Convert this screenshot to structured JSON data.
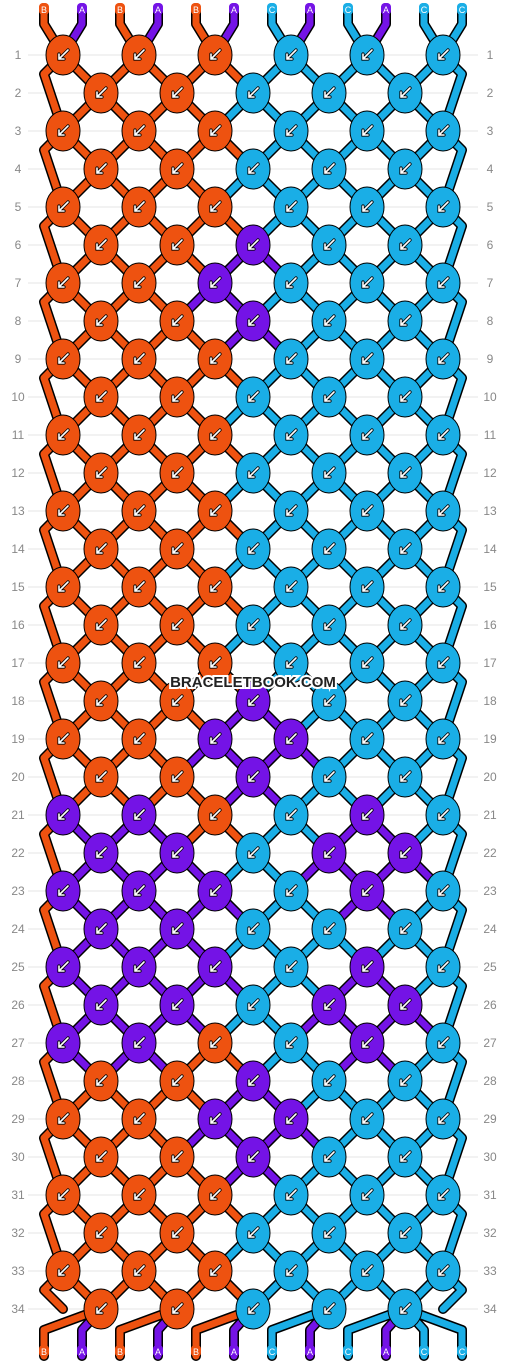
{
  "watermark": "BRACELETBOOK.COM",
  "colors": {
    "A": "#7413E6",
    "B": "#EE5210",
    "C": "#1AAEE6"
  },
  "top_strands": [
    "B",
    "A",
    "B",
    "A",
    "B",
    "A",
    "C",
    "A",
    "C",
    "A",
    "C",
    "C"
  ],
  "bottom_strands": [
    "B",
    "A",
    "B",
    "A",
    "B",
    "A",
    "C",
    "A",
    "C",
    "A",
    "C",
    "C"
  ],
  "rows": [
    {
      "num": "1",
      "knots": [
        "B",
        "B",
        "B",
        "C",
        "C",
        "C"
      ]
    },
    {
      "num": "2",
      "knots": [
        "B",
        "B",
        "C",
        "C",
        "C"
      ]
    },
    {
      "num": "3",
      "knots": [
        "B",
        "B",
        "B",
        "C",
        "C",
        "C"
      ]
    },
    {
      "num": "4",
      "knots": [
        "B",
        "B",
        "C",
        "C",
        "C"
      ]
    },
    {
      "num": "5",
      "knots": [
        "B",
        "B",
        "B",
        "C",
        "C",
        "C"
      ]
    },
    {
      "num": "6",
      "knots": [
        "B",
        "B",
        "A",
        "C",
        "C"
      ]
    },
    {
      "num": "7",
      "knots": [
        "B",
        "B",
        "A",
        "C",
        "C",
        "C"
      ]
    },
    {
      "num": "8",
      "knots": [
        "B",
        "B",
        "A",
        "C",
        "C"
      ]
    },
    {
      "num": "9",
      "knots": [
        "B",
        "B",
        "B",
        "C",
        "C",
        "C"
      ]
    },
    {
      "num": "10",
      "knots": [
        "B",
        "B",
        "C",
        "C",
        "C"
      ]
    },
    {
      "num": "11",
      "knots": [
        "B",
        "B",
        "B",
        "C",
        "C",
        "C"
      ]
    },
    {
      "num": "12",
      "knots": [
        "B",
        "B",
        "C",
        "C",
        "C"
      ]
    },
    {
      "num": "13",
      "knots": [
        "B",
        "B",
        "B",
        "C",
        "C",
        "C"
      ]
    },
    {
      "num": "14",
      "knots": [
        "B",
        "B",
        "C",
        "C",
        "C"
      ]
    },
    {
      "num": "15",
      "knots": [
        "B",
        "B",
        "B",
        "C",
        "C",
        "C"
      ]
    },
    {
      "num": "16",
      "knots": [
        "B",
        "B",
        "C",
        "C",
        "C"
      ]
    },
    {
      "num": "17",
      "knots": [
        "B",
        "B",
        "B",
        "C",
        "C",
        "C"
      ]
    },
    {
      "num": "18",
      "knots": [
        "B",
        "B",
        "A",
        "C",
        "C"
      ]
    },
    {
      "num": "19",
      "knots": [
        "B",
        "B",
        "A",
        "A",
        "C",
        "C"
      ]
    },
    {
      "num": "20",
      "knots": [
        "B",
        "B",
        "A",
        "C",
        "C"
      ]
    },
    {
      "num": "21",
      "knots": [
        "A",
        "A",
        "B",
        "C",
        "A",
        "C"
      ]
    },
    {
      "num": "22",
      "knots": [
        "A",
        "A",
        "C",
        "A",
        "A"
      ]
    },
    {
      "num": "23",
      "knots": [
        "A",
        "A",
        "A",
        "C",
        "A",
        "C"
      ]
    },
    {
      "num": "24",
      "knots": [
        "A",
        "A",
        "C",
        "C",
        "C"
      ]
    },
    {
      "num": "25",
      "knots": [
        "A",
        "A",
        "A",
        "C",
        "A",
        "C"
      ]
    },
    {
      "num": "26",
      "knots": [
        "A",
        "A",
        "C",
        "A",
        "A"
      ]
    },
    {
      "num": "27",
      "knots": [
        "A",
        "A",
        "B",
        "C",
        "A",
        "C"
      ]
    },
    {
      "num": "28",
      "knots": [
        "B",
        "B",
        "A",
        "C",
        "C"
      ]
    },
    {
      "num": "29",
      "knots": [
        "B",
        "B",
        "A",
        "A",
        "C",
        "C"
      ]
    },
    {
      "num": "30",
      "knots": [
        "B",
        "B",
        "A",
        "C",
        "C"
      ]
    },
    {
      "num": "31",
      "knots": [
        "B",
        "B",
        "B",
        "C",
        "C",
        "C"
      ]
    },
    {
      "num": "32",
      "knots": [
        "B",
        "B",
        "C",
        "C",
        "C"
      ]
    },
    {
      "num": "33",
      "knots": [
        "B",
        "B",
        "B",
        "C",
        "C",
        "C"
      ]
    },
    {
      "num": "34",
      "knots": [
        "B",
        "B",
        "C",
        "C",
        "C"
      ]
    }
  ]
}
